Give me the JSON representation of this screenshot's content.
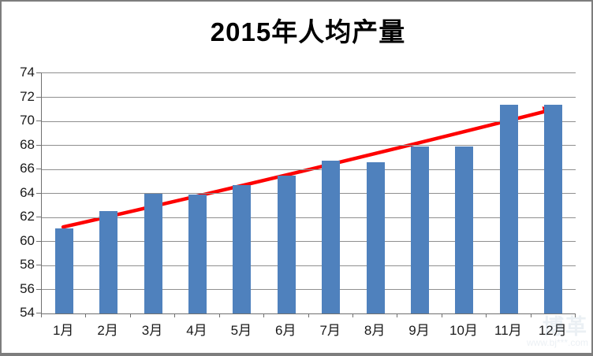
{
  "window": {
    "background": "#ffffff",
    "border_color": "#7d7d7d"
  },
  "chart_data": {
    "type": "bar",
    "title": "2015年人均产量",
    "categories": [
      "1月",
      "2月",
      "3月",
      "4月",
      "5月",
      "6月",
      "7月",
      "8月",
      "9月",
      "10月",
      "11月",
      "12月"
    ],
    "values": [
      61.1,
      62.5,
      64.0,
      63.9,
      64.7,
      65.5,
      66.7,
      66.6,
      67.9,
      67.9,
      71.4,
      71.4
    ],
    "xlabel": "",
    "ylabel": "",
    "ylim": [
      54,
      74
    ],
    "yticks": [
      74,
      72,
      70,
      68,
      66,
      64,
      62,
      60,
      58,
      56,
      54
    ],
    "grid": true,
    "legend": "none",
    "bar_color": "#4f81bd",
    "gridline_color": "#8f8f8f",
    "axis_color": "#707070",
    "trend_arrow": {
      "color": "#fe0000",
      "stroke_width": 4.5,
      "x1_cat": 0.48,
      "y1_value": 61.2,
      "x2_cat": 11.5,
      "y2_value": 71.0
    }
  },
  "watermark": {
    "logo_text": "博革",
    "url_text": "www.bj***.com"
  }
}
